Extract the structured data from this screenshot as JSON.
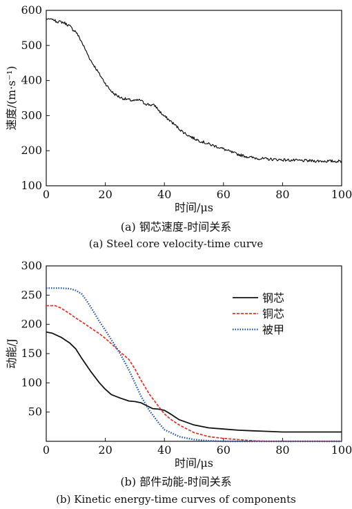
{
  "chart_data": [
    {
      "type": "line",
      "caption_zh": "(a) 钢芯速度-时间关系",
      "caption_en": "(a) Steel core velocity-time curve",
      "xlabel": "时间/μs",
      "ylabel": "速度/(m·s⁻¹)",
      "xlim": [
        0,
        100
      ],
      "ylim": [
        100,
        600
      ],
      "xticks": [
        0,
        20,
        40,
        60,
        80,
        100
      ],
      "yticks": [
        100,
        200,
        300,
        400,
        500,
        600
      ],
      "grid": false,
      "series": [
        {
          "color": "#111111",
          "style": "solid",
          "noisy": true,
          "x": [
            0,
            2,
            3,
            4,
            5,
            6,
            7,
            8,
            9,
            10,
            11,
            12,
            13,
            14,
            15,
            16,
            17,
            18,
            19,
            20,
            21,
            22,
            23,
            24,
            25,
            26,
            27,
            28,
            29,
            30,
            31,
            32,
            33,
            34,
            35,
            36,
            37,
            38,
            39,
            40,
            42,
            44,
            46,
            48,
            50,
            52,
            54,
            56,
            58,
            60,
            62,
            64,
            66,
            68,
            70,
            72,
            75,
            80,
            85,
            90,
            95,
            100
          ],
          "y": [
            575,
            575,
            570,
            568,
            567,
            565,
            560,
            555,
            545,
            540,
            525,
            510,
            492,
            475,
            458,
            445,
            432,
            418,
            405,
            392,
            380,
            370,
            362,
            357,
            352,
            349,
            347,
            345,
            343,
            342,
            344,
            344,
            336,
            333,
            331,
            330,
            327,
            316,
            306,
            298,
            285,
            270,
            255,
            244,
            235,
            228,
            222,
            216,
            211,
            205,
            198,
            192,
            187,
            183,
            180,
            178,
            176,
            174,
            172,
            171,
            170,
            170
          ]
        }
      ]
    },
    {
      "type": "line",
      "caption_zh": "(b) 部件动能-时间关系",
      "caption_en": "(b) Kinetic energy-time curves of components",
      "xlabel": "时间/μs",
      "ylabel": "动能/J",
      "xlim": [
        0,
        100
      ],
      "ylim": [
        0,
        300
      ],
      "xticks": [
        0,
        20,
        40,
        60,
        80,
        100
      ],
      "yticks": [
        50,
        100,
        150,
        200,
        250,
        300
      ],
      "grid": false,
      "legend_position": "top-right",
      "series": [
        {
          "name": "钢芯",
          "color": "#111111",
          "style": "solid",
          "x": [
            0,
            2,
            5,
            8,
            10,
            12,
            15,
            18,
            20,
            22,
            25,
            28,
            30,
            32,
            34,
            36,
            38,
            40,
            42,
            45,
            50,
            55,
            60,
            65,
            70,
            75,
            80,
            90,
            100
          ],
          "y": [
            187,
            185,
            178,
            168,
            158,
            142,
            120,
            100,
            89,
            80,
            74,
            69,
            68,
            66,
            61,
            56,
            55,
            53,
            47,
            37,
            28,
            23,
            21,
            19,
            18,
            17,
            16,
            16,
            16
          ]
        },
        {
          "name": "铜芯",
          "color": "#e8332a",
          "style": "dashed",
          "x": [
            0,
            3,
            5,
            8,
            10,
            13,
            15,
            18,
            20,
            22,
            25,
            28,
            30,
            32,
            35,
            38,
            40,
            42,
            45,
            50,
            55,
            60,
            65,
            70,
            75,
            80,
            90,
            100
          ],
          "y": [
            232,
            232,
            228,
            218,
            211,
            201,
            194,
            184,
            176,
            167,
            153,
            140,
            124,
            105,
            80,
            60,
            47,
            38,
            28,
            15,
            8,
            5,
            3,
            1,
            0,
            0,
            0,
            0
          ]
        },
        {
          "name": "被甲",
          "color": "#2255bb",
          "style": "dotted",
          "x": [
            0,
            5,
            8,
            10,
            12,
            14,
            16,
            18,
            20,
            22,
            25,
            28,
            30,
            32,
            35,
            38,
            40,
            45,
            50,
            55,
            60,
            70,
            80,
            100
          ],
          "y": [
            262,
            262,
            261,
            258,
            252,
            238,
            222,
            205,
            190,
            174,
            150,
            122,
            100,
            78,
            52,
            32,
            20,
            8,
            3,
            1,
            0,
            0,
            0,
            0
          ]
        }
      ]
    }
  ]
}
